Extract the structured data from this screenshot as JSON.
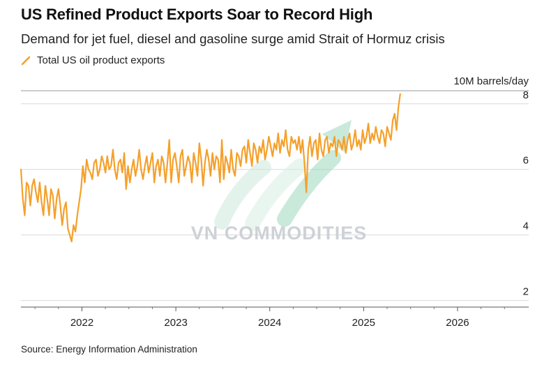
{
  "header": {
    "title": "US Refined Product Exports Soar to Record High",
    "subtitle": "Demand for jet fuel, diesel and gasoline surge amid Strait of Hormuz crisis"
  },
  "legend": {
    "label": "Total US oil product exports",
    "color": "#f5a02a"
  },
  "unit_label": "10M barrels/day",
  "watermark": "VN COMMODITIES",
  "source": "Source: Energy Information Administration",
  "chart_data": {
    "type": "line",
    "series": [
      {
        "name": "Total US oil product exports",
        "color": "#f5a02a",
        "x_start": 2021.35,
        "x_step": 0.02,
        "values": [
          6.0,
          5.1,
          4.6,
          5.6,
          5.5,
          4.9,
          5.5,
          5.7,
          5.3,
          5.0,
          5.6,
          5.0,
          4.6,
          5.5,
          5.1,
          4.6,
          5.4,
          5.2,
          4.5,
          5.1,
          5.4,
          4.9,
          4.3,
          4.8,
          5.0,
          4.2,
          4.0,
          3.8,
          4.3,
          4.1,
          4.6,
          5.0,
          5.4,
          6.1,
          5.6,
          6.3,
          6.0,
          5.9,
          5.7,
          6.2,
          6.3,
          5.8,
          6.0,
          6.4,
          6.2,
          5.9,
          6.4,
          6.0,
          6.1,
          6.6,
          6.0,
          5.7,
          6.2,
          6.3,
          5.9,
          6.5,
          5.4,
          6.1,
          5.6,
          6.0,
          6.3,
          5.8,
          6.1,
          6.6,
          6.0,
          5.7,
          6.1,
          6.4,
          5.9,
          6.2,
          6.5,
          5.6,
          6.1,
          6.3,
          5.8,
          6.4,
          6.2,
          5.6,
          6.2,
          6.9,
          5.6,
          6.3,
          6.5,
          6.1,
          5.6,
          6.4,
          6.6,
          5.8,
          6.1,
          6.4,
          6.2,
          5.6,
          6.5,
          6.2,
          5.8,
          6.8,
          6.3,
          5.5,
          6.2,
          6.6,
          6.3,
          5.8,
          6.5,
          6.0,
          6.4,
          6.3,
          5.6,
          6.9,
          5.7,
          6.4,
          6.2,
          5.9,
          6.6,
          6.0,
          5.8,
          6.5,
          6.4,
          6.1,
          6.6,
          6.7,
          6.2,
          6.9,
          6.5,
          6.1,
          6.8,
          6.6,
          6.2,
          6.7,
          6.5,
          6.9,
          6.3,
          6.6,
          7.0,
          6.7,
          6.4,
          6.8,
          6.6,
          7.1,
          6.5,
          6.9,
          6.7,
          7.2,
          6.6,
          6.4,
          7.0,
          6.8,
          6.9,
          6.6,
          7.0,
          6.5,
          6.9,
          6.2,
          5.3,
          6.6,
          7.0,
          6.4,
          6.8,
          6.9,
          6.3,
          7.1,
          6.6,
          6.4,
          6.9,
          7.0,
          6.5,
          6.8,
          6.7,
          7.0,
          6.4,
          6.9,
          6.8,
          6.6,
          7.0,
          6.5,
          6.9,
          7.1,
          6.6,
          6.8,
          7.2,
          6.7,
          6.9,
          6.6,
          7.2,
          6.8,
          7.0,
          7.4,
          6.8,
          7.1,
          6.9,
          7.3,
          7.0,
          6.8,
          7.2,
          7.1,
          6.7,
          7.3,
          7.1,
          6.9,
          7.5,
          7.7,
          7.2,
          7.9,
          8.3
        ]
      }
    ],
    "x_ticks": [
      "2022",
      "2023",
      "2024",
      "2025",
      "2026"
    ],
    "y_ticks": [
      "2",
      "4",
      "6",
      "8"
    ],
    "xlim": [
      2021.35,
      2026.55
    ],
    "ylim": [
      1.8,
      8.4
    ],
    "ylabel": "10M barrels/day",
    "grid": true,
    "legend_position": "top-left"
  }
}
